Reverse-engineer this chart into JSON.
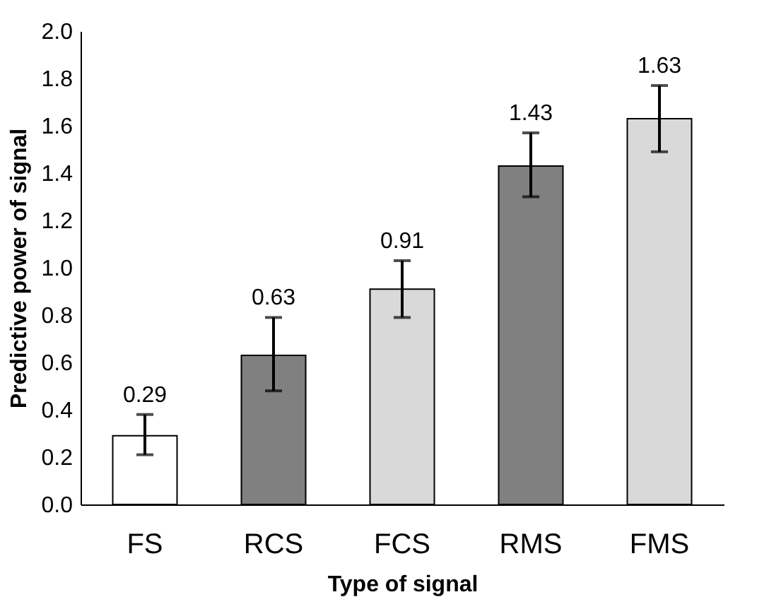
{
  "chart_data": {
    "type": "bar",
    "xlabel": "Type of signal",
    "ylabel": "Predictive power of signal",
    "categories": [
      "FS",
      "RCS",
      "FCS",
      "RMS",
      "FMS"
    ],
    "values": [
      0.29,
      0.63,
      0.91,
      1.43,
      1.63
    ],
    "colors": [
      "#ffffff",
      "#808080",
      "#d9d9d9",
      "#808080",
      "#d9d9d9"
    ],
    "errors": [
      [
        0.21,
        0.38
      ],
      [
        0.48,
        0.79
      ],
      [
        0.79,
        1.03
      ],
      [
        1.3,
        1.57
      ],
      [
        1.49,
        1.77
      ]
    ],
    "data_labels": true,
    "ylim": [
      0,
      2.0
    ],
    "yticks": [
      {
        "value": 0,
        "label": "0.0"
      },
      {
        "value": 0.2,
        "label": "0.2"
      },
      {
        "value": 0.4,
        "label": "0.4"
      },
      {
        "value": 0.6,
        "label": "0.6"
      },
      {
        "value": 0.8,
        "label": "0.8"
      },
      {
        "value": 1.0,
        "label": "1.0"
      },
      {
        "value": 1.2,
        "label": "1.2"
      },
      {
        "value": 1.4,
        "label": "1.4"
      },
      {
        "value": 1.6,
        "label": "1.6"
      },
      {
        "value": 1.8,
        "label": "1.8"
      },
      {
        "value": 2.0,
        "label": "2.0"
      }
    ],
    "grid": false,
    "legend": false
  }
}
